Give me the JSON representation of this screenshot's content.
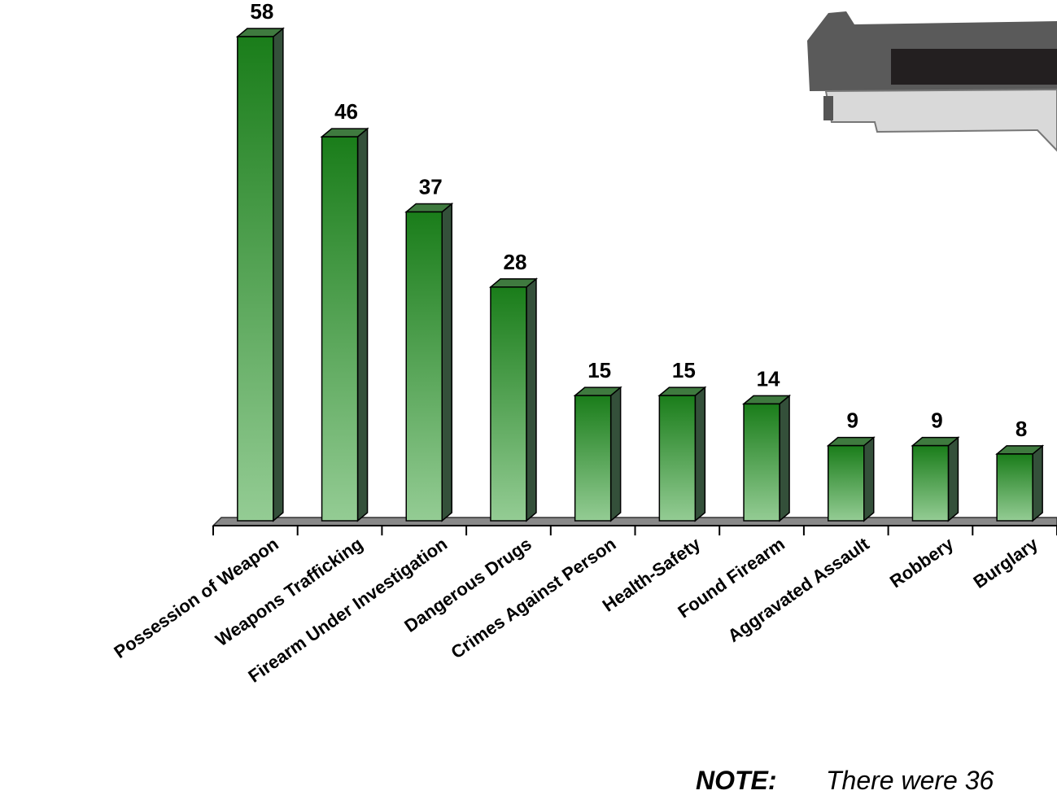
{
  "chart_data": {
    "type": "bar3d",
    "categories": [
      "Possession of Weapon",
      "Weapons Trafficking",
      "Firearm Under Investigation",
      "Dangerous Drugs",
      "Crimes Against Person",
      "Health-Safety",
      "Found Firearm",
      "Aggravated Assault",
      "Robbery",
      "Burglary"
    ],
    "values": [
      58,
      46,
      37,
      28,
      15,
      15,
      14,
      9,
      9,
      8
    ],
    "color": "#1e7f1e",
    "ylim": [
      0,
      60
    ],
    "note_label": "NOTE:",
    "note_text": "There were 36"
  }
}
